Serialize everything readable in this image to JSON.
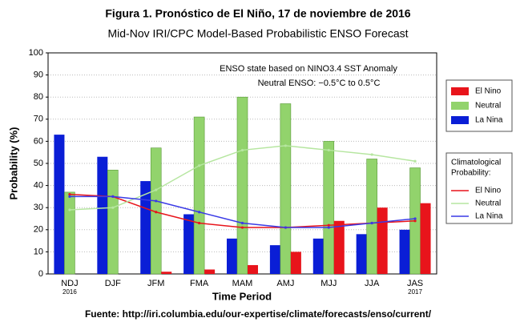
{
  "chart_data": {
    "type": "bar",
    "title": "Figura 1. Pronóstico de El Niño, 17 de noviembre de 2016",
    "subtitle": "Mid-Nov IRI/CPC Model-Based Probabilistic ENSO Forecast",
    "x_label": "Time Period",
    "y_label": "Probability (%)",
    "source": "Fuente: http://iri.columbia.edu/our-expertise/climate/forecasts/enso/current/",
    "annotations": [
      "ENSO state based on NINO3.4 SST Anomaly",
      "Neutral ENSO: −0.5°C to 0.5°C"
    ],
    "categories": [
      "NDJ",
      "DJF",
      "JFM",
      "FMA",
      "MAM",
      "AMJ",
      "MJJ",
      "JJA",
      "JAS"
    ],
    "category_sublabels": [
      "2016",
      null,
      null,
      null,
      null,
      null,
      null,
      null,
      "2017"
    ],
    "series": [
      {
        "name": "La Nina",
        "color": "#0a1ed6",
        "values": [
          63,
          53,
          42,
          27,
          16,
          13,
          16,
          18,
          20
        ]
      },
      {
        "name": "Neutral",
        "color": "#92d36c",
        "values": [
          37,
          47,
          57,
          71,
          80,
          77,
          60,
          52,
          48
        ]
      },
      {
        "name": "El Nino",
        "color": "#e8141b",
        "values": [
          0,
          0,
          1,
          2,
          4,
          10,
          24,
          30,
          32
        ]
      }
    ],
    "bar_legend_order": [
      2,
      1,
      0
    ],
    "line_legend_title": [
      "Climatological",
      "Probability:"
    ],
    "lines": [
      {
        "name": "El Nino",
        "color": "#e8141b",
        "values": [
          36,
          35,
          28,
          23,
          21,
          21,
          22,
          23,
          24
        ]
      },
      {
        "name": "Neutral",
        "color": "#b6e6a0",
        "values": [
          29,
          30,
          38,
          49,
          56,
          58,
          56,
          54,
          51
        ]
      },
      {
        "name": "La Nina",
        "color": "#3a3ae6",
        "values": [
          35,
          35,
          33,
          28,
          23,
          21,
          21,
          23,
          25
        ]
      }
    ],
    "ylim": [
      0,
      100
    ],
    "yticks": [
      0,
      10,
      20,
      30,
      40,
      50,
      60,
      70,
      80,
      90,
      100
    ],
    "grid": true
  }
}
